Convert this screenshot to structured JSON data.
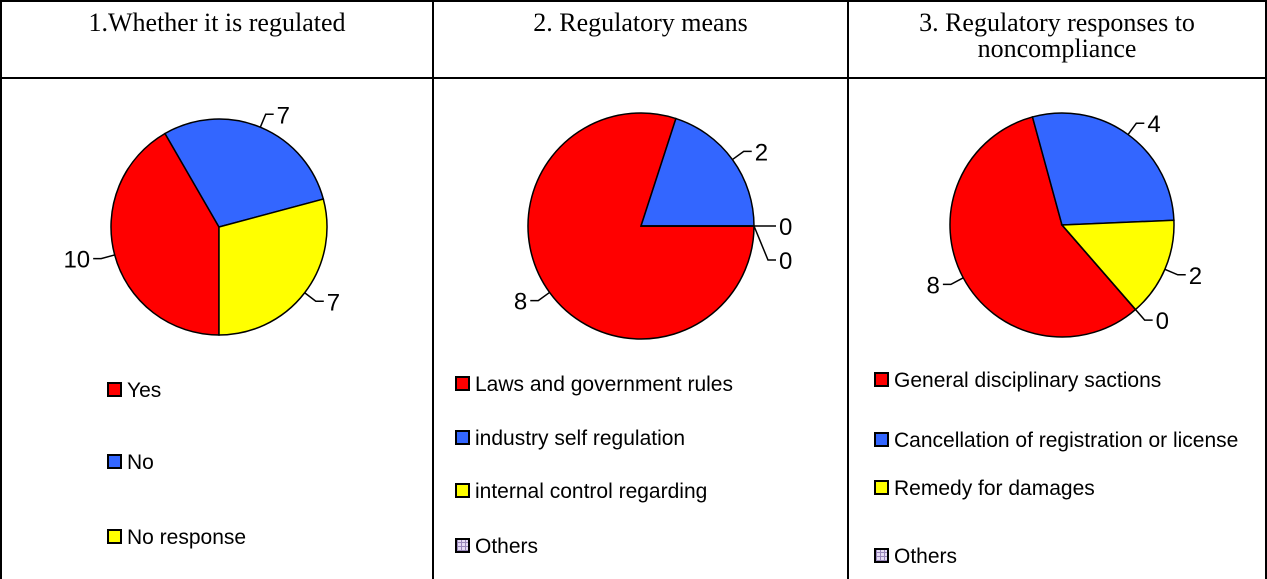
{
  "chart_data": [
    {
      "type": "pie",
      "title": "1.Whether it is regulated",
      "categories": [
        "Yes",
        "No",
        "No response"
      ],
      "values": [
        10,
        7,
        7
      ],
      "colors": [
        "#ff0000",
        "#3366ff",
        "#ffff00"
      ]
    },
    {
      "type": "pie",
      "title": "2. Regulatory means",
      "categories": [
        "Laws and government rules",
        "industry self regulation",
        "internal control regarding",
        "Others"
      ],
      "values": [
        8,
        2,
        0,
        0
      ],
      "colors": [
        "#ff0000",
        "#3366ff",
        "#ffff00",
        "#e6dcf5"
      ]
    },
    {
      "type": "pie",
      "title": "3. Regulatory responses to noncompliance",
      "categories": [
        "General disciplinary sactions",
        "Cancellation of registration or license",
        "Remedy for damages",
        "Others"
      ],
      "values": [
        8,
        4,
        2,
        0
      ],
      "colors": [
        "#ff0000",
        "#3366ff",
        "#ffff00",
        "#e6dcf5"
      ]
    }
  ]
}
